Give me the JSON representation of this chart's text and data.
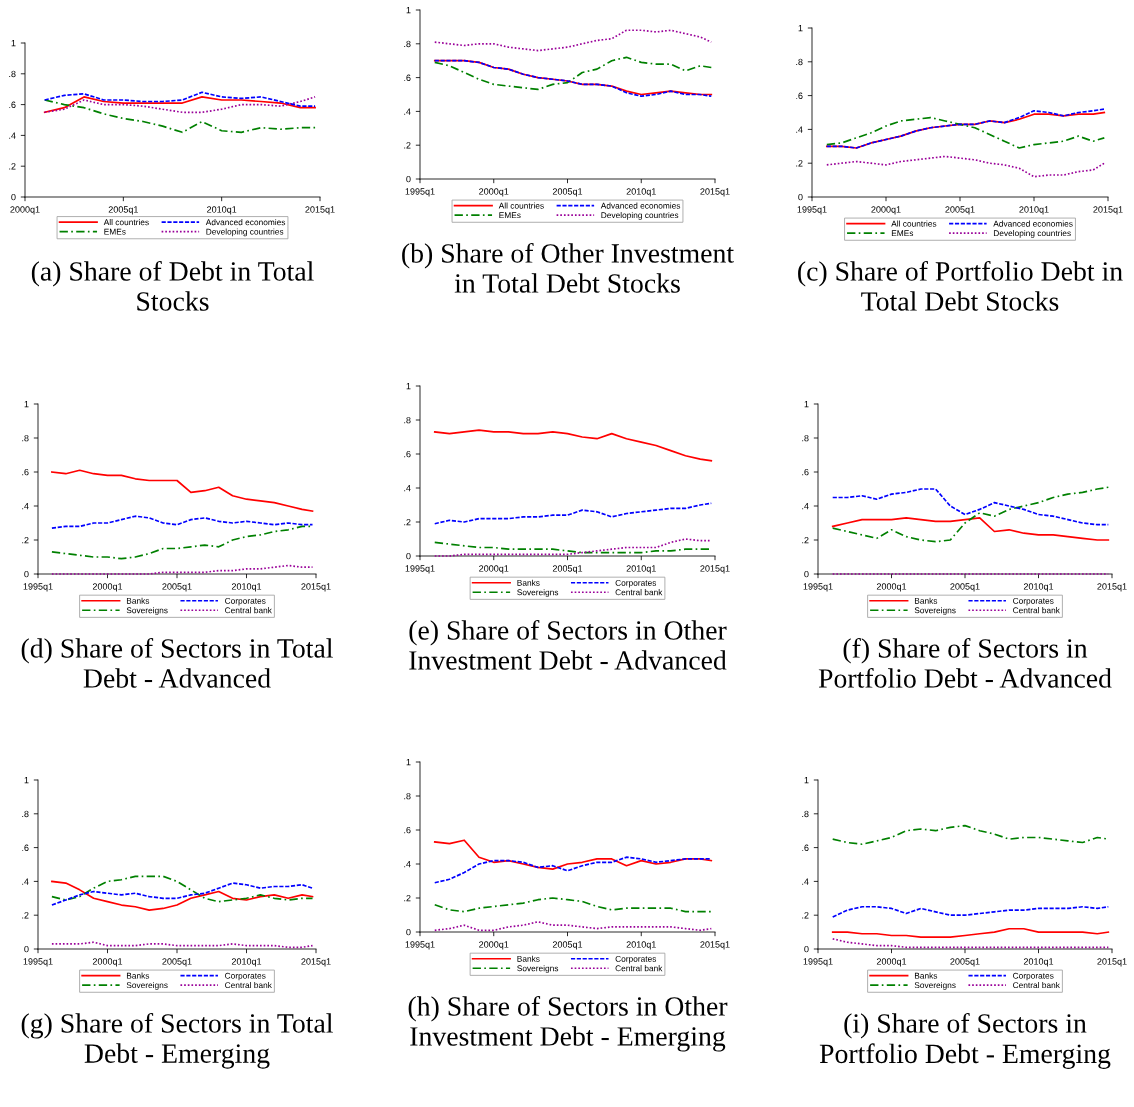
{
  "chart_data": [
    {
      "type": "line",
      "title": "(a) Share of Debt in Total Stocks",
      "x": [
        "2001-01",
        "2002-01",
        "2003-01",
        "2004-01",
        "2005-01",
        "2006-01",
        "2007-01",
        "2008-01",
        "2009-01",
        "2010-01",
        "2011-01",
        "2012-01",
        "2013-01",
        "2014-01",
        "2014-10"
      ],
      "xlim": [
        "2000-01",
        "2015-01"
      ],
      "xticks": [
        {
          "value": "2000-01",
          "label": "2000q1"
        },
        {
          "value": "2005-01",
          "label": "2005q1"
        },
        {
          "value": "2010-01",
          "label": "2010q1"
        },
        {
          "value": "2015-01",
          "label": "2015q1"
        }
      ],
      "ylim": [
        0,
        1
      ],
      "yticks": [
        0,
        {
          "value": 0.2,
          "label": ".2"
        },
        {
          "value": 0.4,
          "label": ".4"
        },
        {
          "value": 0.6,
          "label": ".6"
        },
        {
          "value": 0.8,
          "label": ".8"
        },
        1
      ],
      "legend": "bottom",
      "series": [
        {
          "name": "All countries",
          "color": "#ff0000",
          "line_style": "solid",
          "values": [
            0.55,
            0.58,
            0.65,
            0.62,
            0.61,
            0.61,
            0.61,
            0.61,
            0.65,
            0.63,
            0.63,
            0.62,
            0.61,
            0.58,
            0.58
          ]
        },
        {
          "name": "Advanced economies",
          "color": "#0000ff",
          "line_style": "dashed",
          "values": [
            0.63,
            0.66,
            0.67,
            0.63,
            0.63,
            0.62,
            0.62,
            0.63,
            0.68,
            0.65,
            0.64,
            0.65,
            0.62,
            0.59,
            0.59
          ]
        },
        {
          "name": "EMEs",
          "color": "#008000",
          "line_style": "dashdot",
          "values": [
            0.63,
            0.6,
            0.58,
            0.54,
            0.51,
            0.49,
            0.46,
            0.42,
            0.49,
            0.43,
            0.42,
            0.45,
            0.44,
            0.45,
            0.45
          ]
        },
        {
          "name": "Developing countries",
          "color": "#990099",
          "line_style": "dotted",
          "values": [
            0.55,
            0.57,
            0.63,
            0.6,
            0.6,
            0.59,
            0.57,
            0.55,
            0.55,
            0.57,
            0.6,
            0.6,
            0.59,
            0.62,
            0.65
          ]
        }
      ]
    },
    {
      "type": "line",
      "title": "(b) Share of Other Investment in Total Debt Stocks",
      "x": [
        "1996-01",
        "1997-01",
        "1998-01",
        "1999-01",
        "2000-01",
        "2001-01",
        "2002-01",
        "2003-01",
        "2004-01",
        "2005-01",
        "2006-01",
        "2007-01",
        "2008-01",
        "2009-01",
        "2010-01",
        "2011-01",
        "2012-01",
        "2013-01",
        "2014-01",
        "2014-10"
      ],
      "xlim": [
        "1995-01",
        "2015-01"
      ],
      "xticks": [
        {
          "value": "1995-01",
          "label": "1995q1"
        },
        {
          "value": "2000-01",
          "label": "2000q1"
        },
        {
          "value": "2005-01",
          "label": "2005q1"
        },
        {
          "value": "2010-01",
          "label": "2010q1"
        },
        {
          "value": "2015-01",
          "label": "2015q1"
        }
      ],
      "ylim": [
        0,
        1
      ],
      "yticks": [
        0,
        {
          "value": 0.2,
          "label": ".2"
        },
        {
          "value": 0.4,
          "label": ".4"
        },
        {
          "value": 0.6,
          "label": ".6"
        },
        {
          "value": 0.8,
          "label": ".8"
        },
        1
      ],
      "legend": "bottom",
      "series": [
        {
          "name": "All countries",
          "color": "#ff0000",
          "line_style": "solid",
          "values": [
            0.7,
            0.7,
            0.7,
            0.69,
            0.66,
            0.65,
            0.62,
            0.6,
            0.59,
            0.58,
            0.56,
            0.56,
            0.55,
            0.52,
            0.5,
            0.51,
            0.52,
            0.51,
            0.5,
            0.5
          ]
        },
        {
          "name": "Advanced economies",
          "color": "#0000ff",
          "line_style": "dashed",
          "values": [
            0.7,
            0.7,
            0.7,
            0.69,
            0.66,
            0.65,
            0.62,
            0.6,
            0.59,
            0.58,
            0.56,
            0.56,
            0.55,
            0.51,
            0.49,
            0.5,
            0.52,
            0.5,
            0.5,
            0.49
          ]
        },
        {
          "name": "EMEs",
          "color": "#008000",
          "line_style": "dashdot",
          "values": [
            0.69,
            0.67,
            0.63,
            0.59,
            0.56,
            0.55,
            0.54,
            0.53,
            0.56,
            0.57,
            0.63,
            0.65,
            0.7,
            0.72,
            0.69,
            0.68,
            0.68,
            0.64,
            0.67,
            0.66
          ]
        },
        {
          "name": "Developing countries",
          "color": "#990099",
          "line_style": "dotted",
          "values": [
            0.81,
            0.8,
            0.79,
            0.8,
            0.8,
            0.78,
            0.77,
            0.76,
            0.77,
            0.78,
            0.8,
            0.82,
            0.83,
            0.88,
            0.88,
            0.87,
            0.88,
            0.86,
            0.84,
            0.81
          ]
        }
      ]
    },
    {
      "type": "line",
      "title": "(c) Share of Portfolio Debt in Total Debt Stocks",
      "x": [
        "1996-01",
        "1997-01",
        "1998-01",
        "1999-01",
        "2000-01",
        "2001-01",
        "2002-01",
        "2003-01",
        "2004-01",
        "2005-01",
        "2006-01",
        "2007-01",
        "2008-01",
        "2009-01",
        "2010-01",
        "2011-01",
        "2012-01",
        "2013-01",
        "2014-01",
        "2014-10"
      ],
      "xlim": [
        "1995-01",
        "2015-01"
      ],
      "xticks": [
        {
          "value": "1995-01",
          "label": "1995q1"
        },
        {
          "value": "2000-01",
          "label": "2000q1"
        },
        {
          "value": "2005-01",
          "label": "2005q1"
        },
        {
          "value": "2010-01",
          "label": "2010q1"
        },
        {
          "value": "2015-01",
          "label": "2015q1"
        }
      ],
      "ylim": [
        0,
        1
      ],
      "yticks": [
        0,
        {
          "value": 0.2,
          "label": ".2"
        },
        {
          "value": 0.4,
          "label": ".4"
        },
        {
          "value": 0.6,
          "label": ".6"
        },
        {
          "value": 0.8,
          "label": ".8"
        },
        1
      ],
      "legend": "bottom",
      "series": [
        {
          "name": "All countries",
          "color": "#ff0000",
          "line_style": "solid",
          "values": [
            0.3,
            0.3,
            0.29,
            0.32,
            0.34,
            0.36,
            0.39,
            0.41,
            0.42,
            0.43,
            0.43,
            0.45,
            0.44,
            0.46,
            0.49,
            0.49,
            0.48,
            0.49,
            0.49,
            0.5
          ]
        },
        {
          "name": "Advanced economies",
          "color": "#0000ff",
          "line_style": "dashed",
          "values": [
            0.3,
            0.3,
            0.29,
            0.32,
            0.34,
            0.36,
            0.39,
            0.41,
            0.42,
            0.43,
            0.43,
            0.45,
            0.44,
            0.47,
            0.51,
            0.5,
            0.48,
            0.5,
            0.51,
            0.52
          ]
        },
        {
          "name": "EMEs",
          "color": "#008000",
          "line_style": "dashdot",
          "values": [
            0.31,
            0.32,
            0.35,
            0.38,
            0.42,
            0.45,
            0.46,
            0.47,
            0.45,
            0.43,
            0.41,
            0.37,
            0.33,
            0.29,
            0.31,
            0.32,
            0.33,
            0.36,
            0.33,
            0.35
          ]
        },
        {
          "name": "Developing countries",
          "color": "#990099",
          "line_style": "dotted",
          "values": [
            0.19,
            0.2,
            0.21,
            0.2,
            0.19,
            0.21,
            0.22,
            0.23,
            0.24,
            0.23,
            0.22,
            0.2,
            0.19,
            0.17,
            0.12,
            0.13,
            0.13,
            0.15,
            0.16,
            0.2
          ]
        }
      ]
    },
    {
      "type": "line",
      "title": "(d) Share of Sectors in Total Debt - Advanced",
      "x": [
        "1996-01",
        "1997-01",
        "1998-01",
        "1999-01",
        "2000-01",
        "2001-01",
        "2002-01",
        "2003-01",
        "2004-01",
        "2005-01",
        "2006-01",
        "2007-01",
        "2008-01",
        "2009-01",
        "2010-01",
        "2011-01",
        "2012-01",
        "2013-01",
        "2014-01",
        "2014-10"
      ],
      "xlim": [
        "1995-01",
        "2015-01"
      ],
      "xticks": [
        {
          "value": "1995-01",
          "label": "1995q1"
        },
        {
          "value": "2000-01",
          "label": "2000q1"
        },
        {
          "value": "2005-01",
          "label": "2005q1"
        },
        {
          "value": "2010-01",
          "label": "2010q1"
        },
        {
          "value": "2015-01",
          "label": "2015q1"
        }
      ],
      "ylim": [
        0,
        1
      ],
      "yticks": [
        0,
        {
          "value": 0.2,
          "label": ".2"
        },
        {
          "value": 0.4,
          "label": ".4"
        },
        {
          "value": 0.6,
          "label": ".6"
        },
        {
          "value": 0.8,
          "label": ".8"
        },
        1
      ],
      "legend": "bottom",
      "series": [
        {
          "name": "Banks",
          "color": "#ff0000",
          "line_style": "solid",
          "values": [
            0.6,
            0.59,
            0.61,
            0.59,
            0.58,
            0.58,
            0.56,
            0.55,
            0.55,
            0.55,
            0.48,
            0.49,
            0.51,
            0.46,
            0.44,
            0.43,
            0.42,
            0.4,
            0.38,
            0.37
          ]
        },
        {
          "name": "Corporates",
          "color": "#0000ff",
          "line_style": "dashed",
          "values": [
            0.27,
            0.28,
            0.28,
            0.3,
            0.3,
            0.32,
            0.34,
            0.33,
            0.3,
            0.29,
            0.32,
            0.33,
            0.31,
            0.3,
            0.31,
            0.3,
            0.29,
            0.3,
            0.29,
            0.29
          ]
        },
        {
          "name": "Sovereigns",
          "color": "#008000",
          "line_style": "dashdot",
          "values": [
            0.13,
            0.12,
            0.11,
            0.1,
            0.1,
            0.09,
            0.1,
            0.12,
            0.15,
            0.15,
            0.16,
            0.17,
            0.16,
            0.2,
            0.22,
            0.23,
            0.25,
            0.26,
            0.28,
            0.28
          ]
        },
        {
          "name": "Central bank",
          "color": "#990099",
          "line_style": "dotted",
          "values": [
            0,
            0,
            0,
            0,
            0,
            0,
            0,
            0,
            0.01,
            0.01,
            0.01,
            0.01,
            0.02,
            0.02,
            0.03,
            0.03,
            0.04,
            0.05,
            0.04,
            0.04
          ]
        }
      ]
    },
    {
      "type": "line",
      "title": "(e) Share of Sectors in Other Investment Debt - Advanced",
      "x": [
        "1996-01",
        "1997-01",
        "1998-01",
        "1999-01",
        "2000-01",
        "2001-01",
        "2002-01",
        "2003-01",
        "2004-01",
        "2005-01",
        "2006-01",
        "2007-01",
        "2008-01",
        "2009-01",
        "2010-01",
        "2011-01",
        "2012-01",
        "2013-01",
        "2014-01",
        "2014-10"
      ],
      "xlim": [
        "1995-01",
        "2015-01"
      ],
      "xticks": [
        {
          "value": "1995-01",
          "label": "1995q1"
        },
        {
          "value": "2000-01",
          "label": "2000q1"
        },
        {
          "value": "2005-01",
          "label": "2005q1"
        },
        {
          "value": "2010-01",
          "label": "2010q1"
        },
        {
          "value": "2015-01",
          "label": "2015q1"
        }
      ],
      "ylim": [
        0,
        1
      ],
      "yticks": [
        0,
        {
          "value": 0.2,
          "label": ".2"
        },
        {
          "value": 0.4,
          "label": ".4"
        },
        {
          "value": 0.6,
          "label": ".6"
        },
        {
          "value": 0.8,
          "label": ".8"
        },
        1
      ],
      "legend": "bottom",
      "series": [
        {
          "name": "Banks",
          "color": "#ff0000",
          "line_style": "solid",
          "values": [
            0.73,
            0.72,
            0.73,
            0.74,
            0.73,
            0.73,
            0.72,
            0.72,
            0.73,
            0.72,
            0.7,
            0.69,
            0.72,
            0.69,
            0.67,
            0.65,
            0.62,
            0.59,
            0.57,
            0.56
          ]
        },
        {
          "name": "Corporates",
          "color": "#0000ff",
          "line_style": "dashed",
          "values": [
            0.19,
            0.21,
            0.2,
            0.22,
            0.22,
            0.22,
            0.23,
            0.23,
            0.24,
            0.24,
            0.27,
            0.26,
            0.23,
            0.25,
            0.26,
            0.27,
            0.28,
            0.28,
            0.3,
            0.31
          ]
        },
        {
          "name": "Sovereigns",
          "color": "#008000",
          "line_style": "dashdot",
          "values": [
            0.08,
            0.07,
            0.06,
            0.05,
            0.05,
            0.04,
            0.04,
            0.04,
            0.04,
            0.03,
            0.02,
            0.02,
            0.02,
            0.02,
            0.02,
            0.03,
            0.03,
            0.04,
            0.04,
            0.04
          ]
        },
        {
          "name": "Central bank",
          "color": "#990099",
          "line_style": "dotted",
          "values": [
            0,
            0,
            0.01,
            0.01,
            0.01,
            0.01,
            0.01,
            0.01,
            0.01,
            0.01,
            0.02,
            0.03,
            0.04,
            0.05,
            0.05,
            0.05,
            0.08,
            0.1,
            0.09,
            0.09
          ]
        }
      ]
    },
    {
      "type": "line",
      "title": "(f) Share of Sectors in Portfolio Debt - Advanced",
      "x": [
        "1996-01",
        "1997-01",
        "1998-01",
        "1999-01",
        "2000-01",
        "2001-01",
        "2002-01",
        "2003-01",
        "2004-01",
        "2005-01",
        "2006-01",
        "2007-01",
        "2008-01",
        "2009-01",
        "2010-01",
        "2011-01",
        "2012-01",
        "2013-01",
        "2014-01",
        "2014-10"
      ],
      "xlim": [
        "1995-01",
        "2015-01"
      ],
      "xticks": [
        {
          "value": "1995-01",
          "label": "1995q1"
        },
        {
          "value": "2000-01",
          "label": "2000q1"
        },
        {
          "value": "2005-01",
          "label": "2005q1"
        },
        {
          "value": "2010-01",
          "label": "2010q1"
        },
        {
          "value": "2015-01",
          "label": "2015q1"
        }
      ],
      "ylim": [
        0,
        1
      ],
      "yticks": [
        0,
        {
          "value": 0.2,
          "label": ".2"
        },
        {
          "value": 0.4,
          "label": ".4"
        },
        {
          "value": 0.6,
          "label": ".6"
        },
        {
          "value": 0.8,
          "label": ".8"
        },
        1
      ],
      "legend": "bottom",
      "series": [
        {
          "name": "Banks",
          "color": "#ff0000",
          "line_style": "solid",
          "values": [
            0.28,
            0.3,
            0.32,
            0.32,
            0.32,
            0.33,
            0.32,
            0.31,
            0.31,
            0.32,
            0.33,
            0.25,
            0.26,
            0.24,
            0.23,
            0.23,
            0.22,
            0.21,
            0.2,
            0.2
          ]
        },
        {
          "name": "Corporates",
          "color": "#0000ff",
          "line_style": "dashed",
          "values": [
            0.45,
            0.45,
            0.46,
            0.44,
            0.47,
            0.48,
            0.5,
            0.5,
            0.4,
            0.35,
            0.38,
            0.42,
            0.4,
            0.38,
            0.35,
            0.34,
            0.32,
            0.3,
            0.29,
            0.29
          ]
        },
        {
          "name": "Sovereigns",
          "color": "#008000",
          "line_style": "dashdot",
          "values": [
            0.27,
            0.25,
            0.23,
            0.21,
            0.26,
            0.22,
            0.2,
            0.19,
            0.2,
            0.3,
            0.36,
            0.34,
            0.38,
            0.4,
            0.42,
            0.45,
            0.47,
            0.48,
            0.5,
            0.51
          ]
        },
        {
          "name": "Central bank",
          "color": "#990099",
          "line_style": "dotted",
          "values": [
            0,
            0,
            0,
            0,
            0,
            0,
            0,
            0,
            0,
            0,
            0,
            0,
            0,
            0,
            0,
            0,
            0,
            0,
            0,
            0
          ]
        }
      ]
    },
    {
      "type": "line",
      "title": "(g) Share of Sectors in Total Debt - Emerging",
      "x": [
        "1996-01",
        "1997-01",
        "1998-01",
        "1999-01",
        "2000-01",
        "2001-01",
        "2002-01",
        "2003-01",
        "2004-01",
        "2005-01",
        "2006-01",
        "2007-01",
        "2008-01",
        "2009-01",
        "2010-01",
        "2011-01",
        "2012-01",
        "2013-01",
        "2014-01",
        "2014-10"
      ],
      "xlim": [
        "1995-01",
        "2015-01"
      ],
      "xticks": [
        {
          "value": "1995-01",
          "label": "1995q1"
        },
        {
          "value": "2000-01",
          "label": "2000q1"
        },
        {
          "value": "2005-01",
          "label": "2005q1"
        },
        {
          "value": "2010-01",
          "label": "2010q1"
        },
        {
          "value": "2015-01",
          "label": "2015q1"
        }
      ],
      "ylim": [
        0,
        1
      ],
      "yticks": [
        0,
        {
          "value": 0.2,
          "label": ".2"
        },
        {
          "value": 0.4,
          "label": ".4"
        },
        {
          "value": 0.6,
          "label": ".6"
        },
        {
          "value": 0.8,
          "label": ".8"
        },
        1
      ],
      "legend": "bottom",
      "series": [
        {
          "name": "Banks",
          "color": "#ff0000",
          "line_style": "solid",
          "values": [
            0.4,
            0.39,
            0.35,
            0.3,
            0.28,
            0.26,
            0.25,
            0.23,
            0.24,
            0.26,
            0.3,
            0.32,
            0.34,
            0.3,
            0.29,
            0.31,
            0.32,
            0.3,
            0.32,
            0.31
          ]
        },
        {
          "name": "Corporates",
          "color": "#0000ff",
          "line_style": "dashed",
          "values": [
            0.26,
            0.29,
            0.32,
            0.34,
            0.33,
            0.32,
            0.33,
            0.31,
            0.3,
            0.3,
            0.32,
            0.33,
            0.36,
            0.39,
            0.38,
            0.36,
            0.37,
            0.37,
            0.38,
            0.36
          ]
        },
        {
          "name": "Sovereigns",
          "color": "#008000",
          "line_style": "dashdot",
          "values": [
            0.31,
            0.29,
            0.31,
            0.36,
            0.4,
            0.41,
            0.43,
            0.43,
            0.43,
            0.4,
            0.35,
            0.3,
            0.28,
            0.29,
            0.3,
            0.32,
            0.3,
            0.29,
            0.3,
            0.3
          ]
        },
        {
          "name": "Central bank",
          "color": "#990099",
          "line_style": "dotted",
          "values": [
            0.03,
            0.03,
            0.03,
            0.04,
            0.02,
            0.02,
            0.02,
            0.03,
            0.03,
            0.02,
            0.02,
            0.02,
            0.02,
            0.03,
            0.02,
            0.02,
            0.02,
            0.01,
            0.01,
            0.02
          ]
        }
      ]
    },
    {
      "type": "line",
      "title": "(h) Share of Sectors in Other Investment Debt - Emerging",
      "x": [
        "1996-01",
        "1997-01",
        "1998-01",
        "1999-01",
        "2000-01",
        "2001-01",
        "2002-01",
        "2003-01",
        "2004-01",
        "2005-01",
        "2006-01",
        "2007-01",
        "2008-01",
        "2009-01",
        "2010-01",
        "2011-01",
        "2012-01",
        "2013-01",
        "2014-01",
        "2014-10"
      ],
      "xlim": [
        "1995-01",
        "2015-01"
      ],
      "xticks": [
        {
          "value": "1995-01",
          "label": "1995q1"
        },
        {
          "value": "2000-01",
          "label": "2000q1"
        },
        {
          "value": "2005-01",
          "label": "2005q1"
        },
        {
          "value": "2010-01",
          "label": "2010q1"
        },
        {
          "value": "2015-01",
          "label": "2015q1"
        }
      ],
      "ylim": [
        0,
        1
      ],
      "yticks": [
        0,
        {
          "value": 0.2,
          "label": ".2"
        },
        {
          "value": 0.4,
          "label": ".4"
        },
        {
          "value": 0.6,
          "label": ".6"
        },
        {
          "value": 0.8,
          "label": ".8"
        },
        1
      ],
      "legend": "bottom",
      "series": [
        {
          "name": "Banks",
          "color": "#ff0000",
          "line_style": "solid",
          "values": [
            0.53,
            0.52,
            0.54,
            0.44,
            0.41,
            0.42,
            0.4,
            0.38,
            0.37,
            0.4,
            0.41,
            0.43,
            0.43,
            0.39,
            0.42,
            0.4,
            0.41,
            0.43,
            0.43,
            0.42
          ]
        },
        {
          "name": "Corporates",
          "color": "#0000ff",
          "line_style": "dashed",
          "values": [
            0.29,
            0.31,
            0.35,
            0.4,
            0.42,
            0.42,
            0.41,
            0.38,
            0.39,
            0.36,
            0.39,
            0.41,
            0.41,
            0.44,
            0.43,
            0.41,
            0.42,
            0.43,
            0.43,
            0.43
          ]
        },
        {
          "name": "Sovereigns",
          "color": "#008000",
          "line_style": "dashdot",
          "values": [
            0.16,
            0.13,
            0.12,
            0.14,
            0.15,
            0.16,
            0.17,
            0.19,
            0.2,
            0.19,
            0.18,
            0.15,
            0.13,
            0.14,
            0.14,
            0.14,
            0.14,
            0.12,
            0.12,
            0.12
          ]
        },
        {
          "name": "Central bank",
          "color": "#990099",
          "line_style": "dotted",
          "values": [
            0.01,
            0.02,
            0.04,
            0.01,
            0.01,
            0.03,
            0.04,
            0.06,
            0.04,
            0.04,
            0.03,
            0.02,
            0.03,
            0.03,
            0.03,
            0.03,
            0.03,
            0.02,
            0.01,
            0.02
          ]
        }
      ]
    },
    {
      "type": "line",
      "title": "(i) Share of Sectors in Portfolio Debt - Emerging",
      "x": [
        "1996-01",
        "1997-01",
        "1998-01",
        "1999-01",
        "2000-01",
        "2001-01",
        "2002-01",
        "2003-01",
        "2004-01",
        "2005-01",
        "2006-01",
        "2007-01",
        "2008-01",
        "2009-01",
        "2010-01",
        "2011-01",
        "2012-01",
        "2013-01",
        "2014-01",
        "2014-10"
      ],
      "xlim": [
        "1995-01",
        "2015-01"
      ],
      "xticks": [
        {
          "value": "1995-01",
          "label": "1995q1"
        },
        {
          "value": "2000-01",
          "label": "2000q1"
        },
        {
          "value": "2005-01",
          "label": "2005q1"
        },
        {
          "value": "2010-01",
          "label": "2010q1"
        },
        {
          "value": "2015-01",
          "label": "2015q1"
        }
      ],
      "ylim": [
        0,
        1
      ],
      "yticks": [
        0,
        {
          "value": 0.2,
          "label": ".2"
        },
        {
          "value": 0.4,
          "label": ".4"
        },
        {
          "value": 0.6,
          "label": ".6"
        },
        {
          "value": 0.8,
          "label": ".8"
        },
        1
      ],
      "legend": "bottom",
      "series": [
        {
          "name": "Banks",
          "color": "#ff0000",
          "line_style": "solid",
          "values": [
            0.1,
            0.1,
            0.09,
            0.09,
            0.08,
            0.08,
            0.07,
            0.07,
            0.07,
            0.08,
            0.09,
            0.1,
            0.12,
            0.12,
            0.1,
            0.1,
            0.1,
            0.1,
            0.09,
            0.1
          ]
        },
        {
          "name": "Corporates",
          "color": "#0000ff",
          "line_style": "dashed",
          "values": [
            0.19,
            0.23,
            0.25,
            0.25,
            0.24,
            0.21,
            0.24,
            0.22,
            0.2,
            0.2,
            0.21,
            0.22,
            0.23,
            0.23,
            0.24,
            0.24,
            0.24,
            0.25,
            0.24,
            0.25
          ]
        },
        {
          "name": "Sovereigns",
          "color": "#008000",
          "line_style": "dashdot",
          "values": [
            0.65,
            0.63,
            0.62,
            0.64,
            0.66,
            0.7,
            0.71,
            0.7,
            0.72,
            0.73,
            0.7,
            0.68,
            0.65,
            0.66,
            0.66,
            0.65,
            0.64,
            0.63,
            0.66,
            0.65
          ]
        },
        {
          "name": "Central bank",
          "color": "#990099",
          "line_style": "dotted",
          "values": [
            0.06,
            0.04,
            0.03,
            0.02,
            0.02,
            0.01,
            0.01,
            0.01,
            0.01,
            0.01,
            0.01,
            0.01,
            0.01,
            0.01,
            0.01,
            0.01,
            0.01,
            0.01,
            0.01,
            0.01
          ]
        }
      ]
    }
  ]
}
